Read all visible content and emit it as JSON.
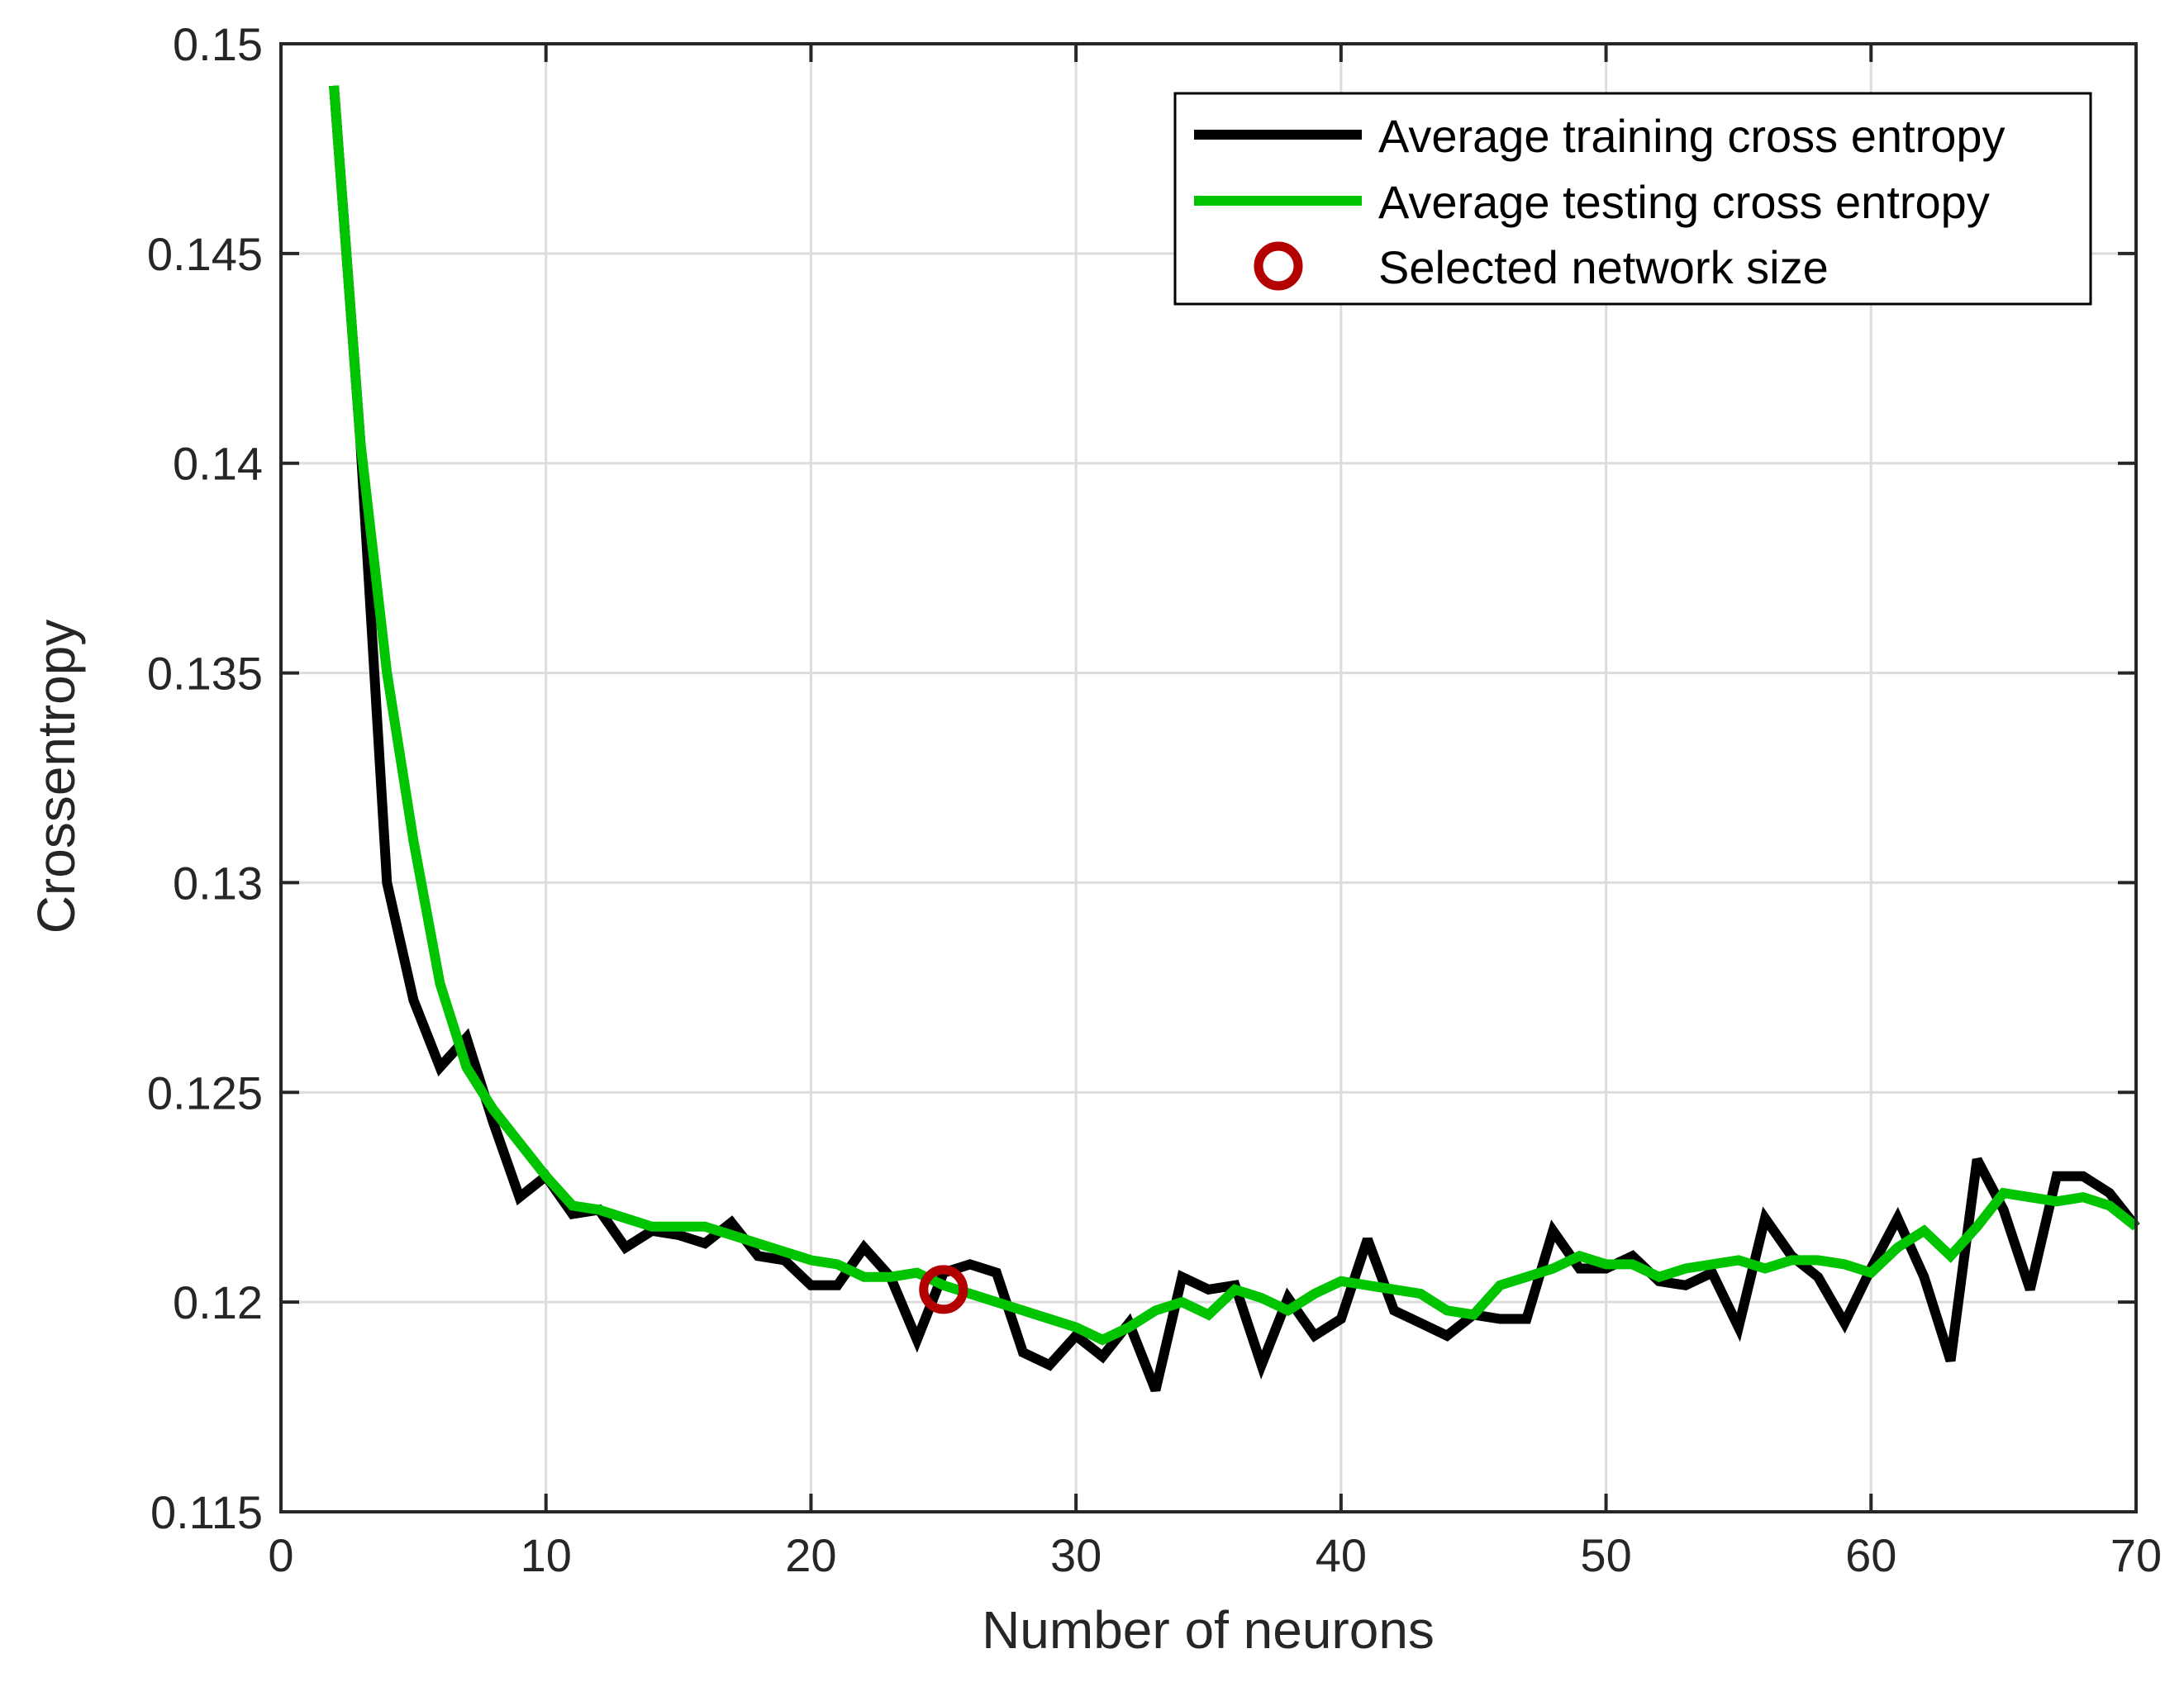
{
  "chart_data": {
    "type": "line",
    "xlabel": "Number of neurons",
    "ylabel": "Crossentropy",
    "xlim": [
      0,
      70
    ],
    "ylim": [
      0.115,
      0.15
    ],
    "xticks": [
      "0",
      "10",
      "20",
      "30",
      "40",
      "50",
      "60",
      "70"
    ],
    "yticks": [
      "0.115",
      "0.12",
      "0.125",
      "0.13",
      "0.135",
      "0.14",
      "0.145",
      "0.15"
    ],
    "grid": true,
    "legend_position": "top-right",
    "x": [
      2,
      3,
      4,
      5,
      6,
      7,
      8,
      9,
      10,
      11,
      12,
      13,
      14,
      15,
      16,
      17,
      18,
      19,
      20,
      21,
      22,
      23,
      24,
      25,
      26,
      27,
      28,
      29,
      30,
      31,
      32,
      33,
      34,
      35,
      36,
      37,
      38,
      39,
      40,
      41,
      42,
      43,
      44,
      45,
      46,
      47,
      48,
      49,
      50,
      51,
      52,
      53,
      54,
      55,
      56,
      57,
      58,
      59,
      60,
      61,
      62,
      63,
      64,
      65,
      66,
      67,
      68,
      69,
      70
    ],
    "series": [
      {
        "name": "Average training cross entropy",
        "color": "#000000",
        "values": [
          0.149,
          0.1405,
          0.13,
          0.1272,
          0.1256,
          0.1263,
          0.1243,
          0.1225,
          0.123,
          0.1221,
          0.1222,
          0.1213,
          0.1217,
          0.1216,
          0.1214,
          0.1219,
          0.1211,
          0.121,
          0.1204,
          0.1204,
          0.1213,
          0.1206,
          0.1191,
          0.1207,
          0.1209,
          0.1207,
          0.1188,
          0.1185,
          0.1192,
          0.1187,
          0.1195,
          0.1179,
          0.1206,
          0.1203,
          0.1204,
          0.1185,
          0.1201,
          0.1192,
          0.1196,
          0.1215,
          0.1198,
          0.1195,
          0.1192,
          0.1197,
          0.1196,
          0.1196,
          0.1217,
          0.1208,
          0.1208,
          0.1211,
          0.1205,
          0.1204,
          0.1207,
          0.1194,
          0.122,
          0.1211,
          0.1206,
          0.1195,
          0.1208,
          0.122,
          0.1206,
          0.1186,
          0.1234,
          0.1222,
          0.1203,
          0.123,
          0.123,
          0.1226,
          0.1218
        ]
      },
      {
        "name": "Average testing cross entropy",
        "color": "#00c400",
        "values": [
          0.149,
          0.1405,
          0.135,
          0.131,
          0.1276,
          0.1256,
          0.1246,
          0.1238,
          0.123,
          0.1223,
          0.1222,
          0.122,
          0.1218,
          0.1218,
          0.1218,
          0.1216,
          0.1214,
          0.1212,
          0.121,
          0.1209,
          0.1206,
          0.1206,
          0.1207,
          0.1204,
          0.1202,
          0.12,
          0.1198,
          0.1196,
          0.1194,
          0.1191,
          0.1194,
          0.1198,
          0.12,
          0.1197,
          0.1203,
          0.1201,
          0.1198,
          0.1202,
          0.1205,
          0.1204,
          0.1203,
          0.1202,
          0.1198,
          0.1197,
          0.1204,
          0.1206,
          0.1208,
          0.1211,
          0.1209,
          0.1209,
          0.1206,
          0.1208,
          0.1209,
          0.121,
          0.1208,
          0.121,
          0.121,
          0.1209,
          0.1207,
          0.1213,
          0.1217,
          0.1211,
          0.1218,
          0.1226,
          0.1225,
          0.1224,
          0.1225,
          0.1223,
          0.1218
        ]
      }
    ],
    "marker": {
      "name": "Selected network size",
      "x": 25,
      "y": 0.1203,
      "color": "#b30000"
    }
  }
}
